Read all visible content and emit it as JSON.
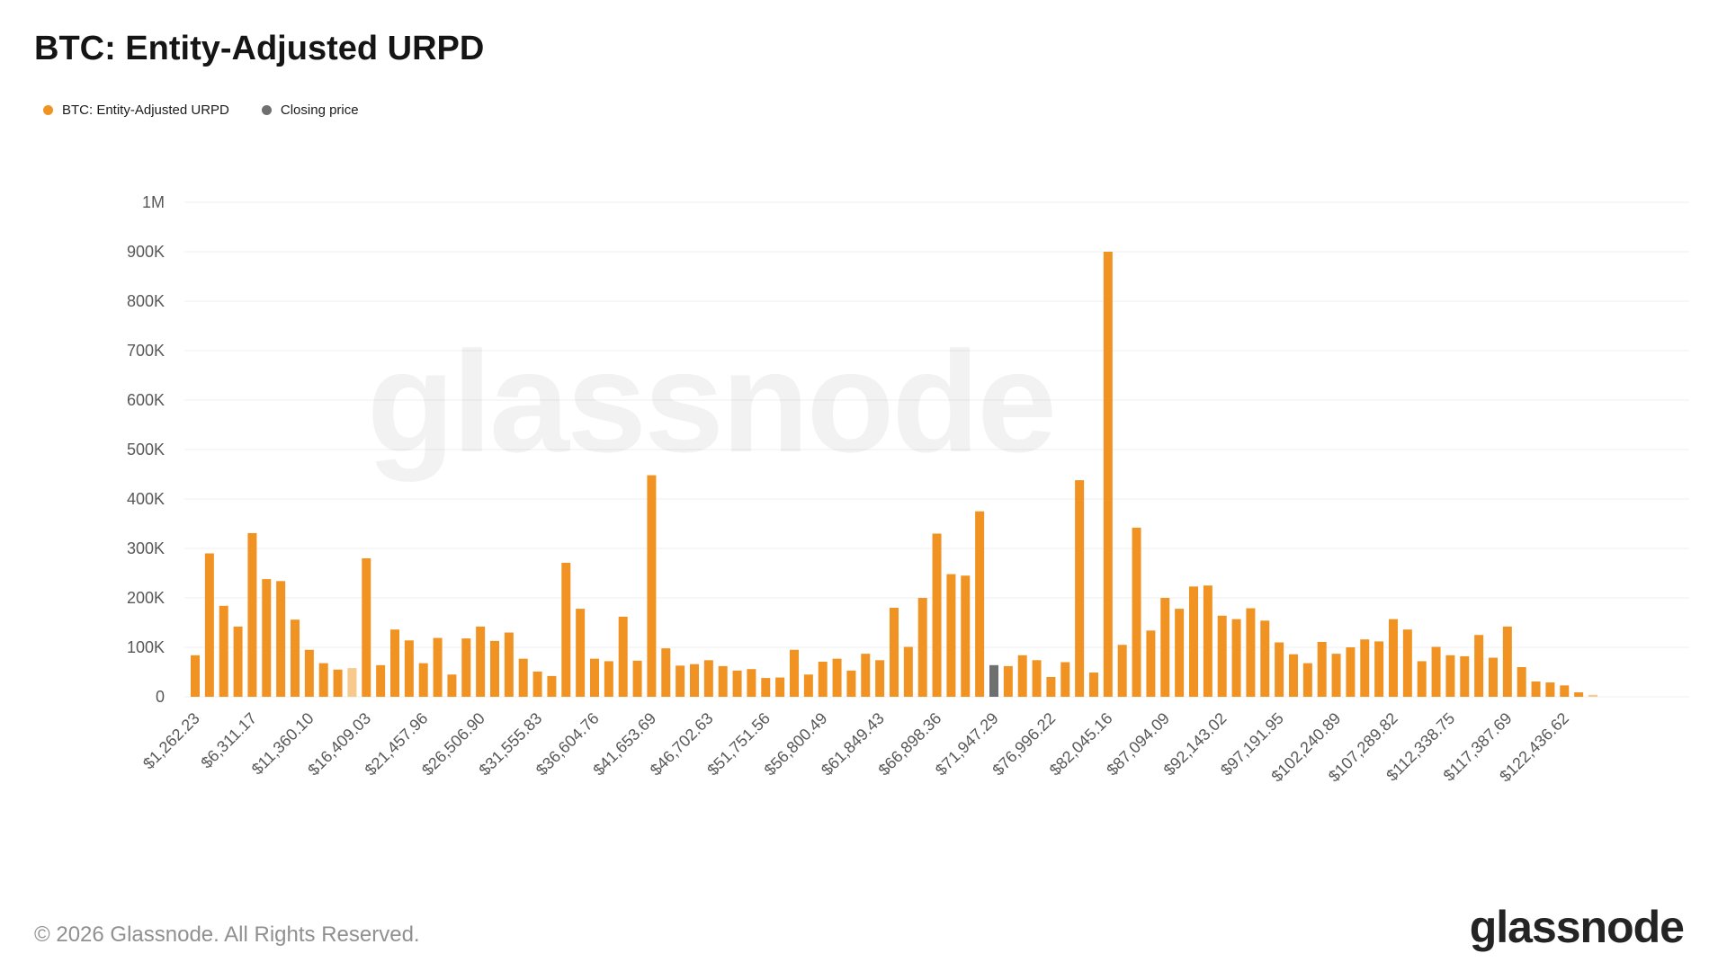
{
  "header": {
    "title": "BTC: Entity-Adjusted URPD"
  },
  "legend": [
    {
      "label": "BTC: Entity-Adjusted URPD",
      "color": "#F19322"
    },
    {
      "label": "Closing price",
      "color": "#6F6F6F"
    }
  ],
  "watermark": {
    "text": "glassnode"
  },
  "footer": {
    "copyright": "© 2026 Glassnode. All Rights Reserved.",
    "logo_text": "glassnode"
  },
  "colors": {
    "bar_orange": "#F19322",
    "bar_orange_faded": "#F8C98C",
    "bar_gray_closing_price": "#6F6F6F",
    "gridline": "#efefef",
    "axis_text": "#585858",
    "background": "#ffffff"
  },
  "chart_data": {
    "type": "bar",
    "title": "BTC: Entity-Adjusted URPD",
    "xlabel": "",
    "ylabel": "",
    "ylim": [
      0,
      1000000
    ],
    "grid": true,
    "legend_position": "top-left",
    "y_ticks": [
      "0",
      "100K",
      "200K",
      "300K",
      "400K",
      "500K",
      "600K",
      "700K",
      "800K",
      "900K",
      "1M"
    ],
    "x_tick_labels": [
      "$1,262.23",
      "$6,311.17",
      "$11,360.10",
      "$16,409.03",
      "$21,457.96",
      "$26,506.90",
      "$31,555.83",
      "$36,604.76",
      "$41,653.69",
      "$46,702.63",
      "$51,751.56",
      "$56,800.49",
      "$61,849.43",
      "$66,898.36",
      "$71,947.29",
      "$76,996.22",
      "$82,045.16",
      "$87,094.09",
      "$92,143.02",
      "$97,191.95",
      "$102,240.89",
      "$107,289.82",
      "$112,338.75",
      "$117,387.69",
      "$122,436.62"
    ],
    "x_tick_every_n_bars": 4,
    "series": [
      {
        "name": "BTC: Entity-Adjusted URPD",
        "unit": "thousands",
        "values_thousands": [
          84,
          290,
          184,
          142,
          331,
          238,
          234,
          156,
          95,
          68,
          55,
          58,
          280,
          64,
          136,
          114,
          68,
          119,
          45,
          118,
          142,
          113,
          130,
          77,
          51,
          42,
          271,
          178,
          77,
          72,
          162,
          73,
          448,
          98,
          63,
          66,
          74,
          62,
          53,
          56,
          38,
          39,
          95,
          45,
          71,
          77,
          53,
          87,
          74,
          180,
          101,
          200,
          330,
          248,
          245,
          375,
          64,
          62,
          84,
          74,
          40,
          70,
          438,
          49,
          900,
          105,
          342,
          134,
          200,
          178,
          223,
          225,
          164,
          157,
          179,
          154,
          110,
          86,
          68,
          111,
          87,
          100,
          116,
          112,
          157,
          136,
          72,
          101,
          84,
          82,
          125,
          79,
          142,
          60,
          31,
          29,
          23,
          9,
          4
        ]
      }
    ],
    "special_bars": {
      "closing_price_bar_index_1based": 57,
      "closing_price_label": "Closing price",
      "faded_bar_indices_1based": [
        12,
        99
      ]
    }
  }
}
